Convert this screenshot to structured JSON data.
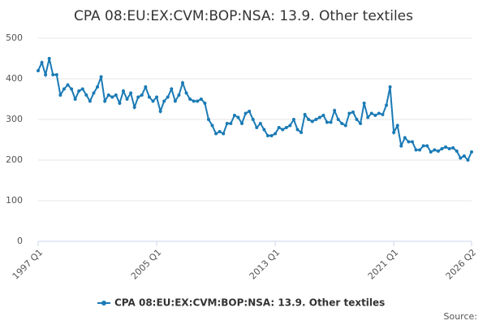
{
  "chart_data": {
    "type": "line",
    "title": "CPA 08:EU:EX:CVM:BOP:NSA: 13.9. Other textiles",
    "source": "Source:",
    "categories": [
      "1997 Q1",
      null,
      null,
      null,
      null,
      null,
      null,
      null,
      null,
      null,
      null,
      null,
      null,
      null,
      null,
      null,
      null,
      null,
      null,
      null,
      null,
      null,
      null,
      null,
      null,
      null,
      null,
      null,
      null,
      null,
      null,
      null,
      "2005 Q1",
      null,
      null,
      null,
      null,
      null,
      null,
      null,
      null,
      null,
      null,
      null,
      null,
      null,
      null,
      null,
      null,
      null,
      null,
      null,
      null,
      null,
      null,
      null,
      null,
      null,
      null,
      null,
      null,
      null,
      null,
      null,
      "2013 Q1",
      null,
      null,
      null,
      null,
      null,
      null,
      null,
      null,
      null,
      null,
      null,
      null,
      null,
      null,
      null,
      null,
      null,
      null,
      null,
      null,
      null,
      null,
      null,
      null,
      null,
      null,
      null,
      null,
      null,
      null,
      null,
      "2021 Q1",
      null,
      null,
      null,
      null,
      null,
      null,
      null,
      null,
      null,
      null,
      null,
      null,
      null,
      null,
      null,
      null,
      null,
      null,
      null,
      null,
      "2026 Q2"
    ],
    "series": [
      {
        "name": "CPA 08:EU:EX:CVM:BOP:NSA: 13.9. Other textiles",
        "color": "#1a7ab5",
        "values": [
          420,
          440,
          410,
          450,
          410,
          410,
          360,
          375,
          385,
          375,
          350,
          370,
          375,
          360,
          345,
          365,
          380,
          405,
          345,
          360,
          355,
          360,
          340,
          370,
          350,
          365,
          330,
          355,
          360,
          380,
          355,
          345,
          355,
          320,
          345,
          355,
          375,
          345,
          360,
          390,
          365,
          350,
          345,
          345,
          350,
          340,
          300,
          285,
          265,
          270,
          265,
          290,
          290,
          310,
          305,
          290,
          315,
          320,
          300,
          280,
          290,
          275,
          260,
          260,
          265,
          280,
          275,
          280,
          285,
          300,
          275,
          268,
          312,
          300,
          295,
          300,
          305,
          310,
          293,
          293,
          322,
          300,
          290,
          285,
          315,
          318,
          300,
          290,
          340,
          305,
          315,
          310,
          315,
          312,
          335,
          380,
          268,
          285,
          235,
          255,
          245,
          245,
          225,
          225,
          235,
          235,
          220,
          225,
          222,
          228,
          232,
          228,
          230,
          222,
          205,
          210,
          200,
          220
        ]
      }
    ],
    "ylim": [
      0,
      500
    ],
    "yticks": [
      0,
      100,
      200,
      300,
      400,
      500
    ],
    "grid": true
  }
}
